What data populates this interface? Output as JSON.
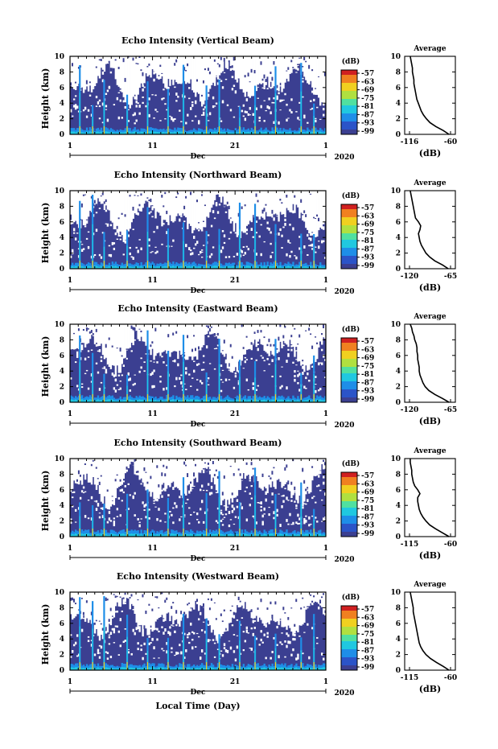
{
  "figure": {
    "xlabel": "Local Time (Day)",
    "month_label": "Dec",
    "year_label": "2020"
  },
  "chart_data": [
    {
      "type": "heatmap",
      "title": "Echo Intensity (Vertical Beam)",
      "ylabel": "Height (km)",
      "xlabel": "Dec",
      "x_ticks": [
        "1",
        "11",
        "21",
        "1"
      ],
      "y_ticks": [
        "0",
        "2",
        "4",
        "6",
        "8",
        "10"
      ],
      "ylim": [
        0,
        10
      ],
      "colorbar": {
        "unit": "(dB)",
        "ticks": [
          "-57",
          "-63",
          "-69",
          "-75",
          "-81",
          "-87",
          "-93",
          "-99"
        ]
      },
      "average": {
        "title": "Average",
        "xlabel": "(dB)",
        "x_ticks": [
          "-116",
          "-60"
        ],
        "y_ticks": [
          "0",
          "2",
          "4",
          "6",
          "8",
          "10"
        ],
        "profile_h": [
          0,
          0.5,
          1,
          1.5,
          2,
          2.5,
          3,
          3.5,
          4,
          4.5,
          5,
          5.5,
          6,
          6.5,
          7,
          7.5,
          8,
          8.5,
          9,
          9.5,
          10
        ],
        "profile_db": [
          -62,
          -70,
          -80,
          -88,
          -93,
          -97,
          -100,
          -102,
          -104,
          -106,
          -107,
          -108,
          -109,
          -110,
          -110,
          -111,
          -112,
          -112,
          -113,
          -114,
          -115
        ]
      }
    },
    {
      "type": "heatmap",
      "title": "Echo Intensity (Northward Beam)",
      "ylabel": "Height (km)",
      "xlabel": "Dec",
      "x_ticks": [
        "1",
        "11",
        "21",
        "1"
      ],
      "y_ticks": [
        "0",
        "2",
        "4",
        "6",
        "8",
        "10"
      ],
      "ylim": [
        0,
        10
      ],
      "colorbar": {
        "unit": "(dB)",
        "ticks": [
          "-57",
          "-63",
          "-69",
          "-75",
          "-81",
          "-87",
          "-93",
          "-99"
        ]
      },
      "average": {
        "title": "Average",
        "xlabel": "(dB)",
        "x_ticks": [
          "-120",
          "-65"
        ],
        "y_ticks": [
          "0",
          "2",
          "4",
          "6",
          "8",
          "10"
        ],
        "profile_h": [
          0,
          0.5,
          1,
          1.5,
          2,
          2.5,
          3,
          3.5,
          4,
          4.5,
          5,
          5.5,
          6,
          6.5,
          7,
          7.5,
          8,
          8.5,
          9,
          9.5,
          10
        ],
        "profile_db": [
          -68,
          -76,
          -86,
          -93,
          -98,
          -101,
          -104,
          -106,
          -107,
          -108,
          -106,
          -105,
          -108,
          -112,
          -113,
          -114,
          -115,
          -116,
          -117,
          -118,
          -119
        ]
      }
    },
    {
      "type": "heatmap",
      "title": "Echo Intensity (Eastward Beam)",
      "ylabel": "Height (km)",
      "xlabel": "Dec",
      "x_ticks": [
        "1",
        "11",
        "21",
        "1"
      ],
      "y_ticks": [
        "0",
        "2",
        "4",
        "6",
        "8",
        "10"
      ],
      "ylim": [
        0,
        10
      ],
      "colorbar": {
        "unit": "(dB)",
        "ticks": [
          "-57",
          "-63",
          "-69",
          "-75",
          "-81",
          "-87",
          "-93",
          "-99"
        ]
      },
      "average": {
        "title": "Average",
        "xlabel": "(dB)",
        "x_ticks": [
          "-120",
          "-65"
        ],
        "y_ticks": [
          "0",
          "2",
          "4",
          "6",
          "8",
          "10"
        ],
        "profile_h": [
          0,
          0.5,
          1,
          1.5,
          2,
          2.5,
          3,
          3.5,
          4,
          4.5,
          5,
          5.5,
          6,
          6.5,
          7,
          7.5,
          8,
          8.5,
          9,
          9.5,
          10
        ],
        "profile_db": [
          -67,
          -76,
          -86,
          -94,
          -99,
          -102,
          -104,
          -106,
          -107,
          -107,
          -108,
          -109,
          -109,
          -110,
          -110,
          -111,
          -113,
          -114,
          -116,
          -117,
          -119
        ]
      }
    },
    {
      "type": "heatmap",
      "title": "Echo Intensity (Southward Beam)",
      "ylabel": "Height (km)",
      "xlabel": "Dec",
      "x_ticks": [
        "1",
        "11",
        "21",
        "1"
      ],
      "y_ticks": [
        "0",
        "2",
        "4",
        "6",
        "8",
        "10"
      ],
      "ylim": [
        0,
        10
      ],
      "colorbar": {
        "unit": "(dB)",
        "ticks": [
          "-57",
          "-63",
          "-69",
          "-75",
          "-81",
          "-87",
          "-93",
          "-99"
        ]
      },
      "average": {
        "title": "Average",
        "xlabel": "(dB)",
        "x_ticks": [
          "-115",
          "-60"
        ],
        "y_ticks": [
          "0",
          "2",
          "4",
          "6",
          "8",
          "10"
        ],
        "profile_h": [
          0,
          0.5,
          1,
          1.5,
          2,
          2.5,
          3,
          3.5,
          4,
          4.5,
          5,
          5.5,
          6,
          6.5,
          7,
          7.5,
          8,
          8.5,
          9,
          9.5,
          10
        ],
        "profile_db": [
          -62,
          -71,
          -80,
          -88,
          -93,
          -97,
          -100,
          -102,
          -103,
          -104,
          -104,
          -101,
          -104,
          -108,
          -110,
          -111,
          -112,
          -112,
          -113,
          -114,
          -114
        ]
      }
    },
    {
      "type": "heatmap",
      "title": "Echo Intensity (Westward Beam)",
      "ylabel": "Height (km)",
      "xlabel": "Dec",
      "x_ticks": [
        "1",
        "11",
        "21",
        "1"
      ],
      "y_ticks": [
        "0",
        "2",
        "4",
        "6",
        "8",
        "10"
      ],
      "ylim": [
        0,
        10
      ],
      "colorbar": {
        "unit": "(dB)",
        "ticks": [
          "-57",
          "-63",
          "-69",
          "-75",
          "-81",
          "-87",
          "-93",
          "-99"
        ]
      },
      "average": {
        "title": "Average",
        "xlabel": "(dB)",
        "x_ticks": [
          "-115",
          "-60"
        ],
        "y_ticks": [
          "0",
          "2",
          "4",
          "6",
          "8",
          "10"
        ],
        "profile_h": [
          0,
          0.5,
          1,
          1.5,
          2,
          2.5,
          3,
          3.5,
          4,
          4.5,
          5,
          5.5,
          6,
          6.5,
          7,
          7.5,
          8,
          8.5,
          9,
          9.5,
          10
        ],
        "profile_db": [
          -62,
          -70,
          -79,
          -87,
          -93,
          -97,
          -100,
          -102,
          -103,
          -104,
          -105,
          -106,
          -107,
          -108,
          -109,
          -110,
          -110,
          -111,
          -112,
          -113,
          -114
        ]
      }
    }
  ],
  "colors": {
    "scale": [
      "#3b3f91",
      "#2b54c8",
      "#1e8ee8",
      "#20c8e0",
      "#50e0a0",
      "#b0e040",
      "#f0d020",
      "#f08020",
      "#d02020"
    ],
    "background": "#3b3f91",
    "profile_line": "#000000"
  }
}
